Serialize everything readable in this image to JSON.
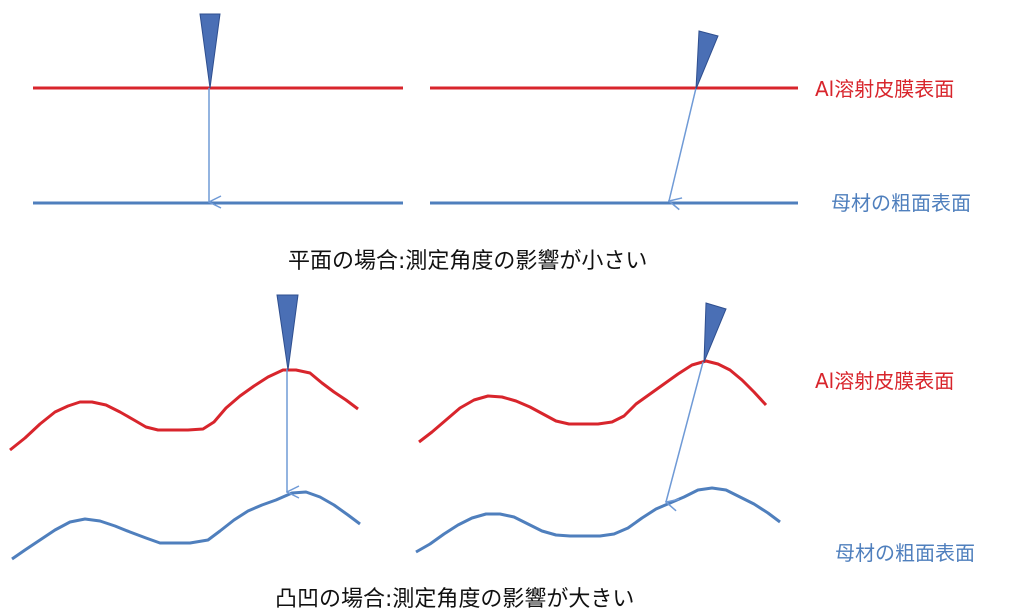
{
  "labels": {
    "top_red": "Al溶射皮膜表面",
    "top_blue": "母材の粗面表面",
    "bottom_red": "Al溶射皮膜表面",
    "bottom_blue": "母材の粗面表面"
  },
  "captions": {
    "flat": "平面の場合:測定角度の影響が小さい",
    "rough": "凸凹の場合:測定角度の影響が大きい"
  },
  "colors": {
    "coating_line": "#d8252c",
    "substrate_line": "#4f7fbd",
    "probe": "#4a6fb5",
    "arrow": "#6f9ad6"
  }
}
